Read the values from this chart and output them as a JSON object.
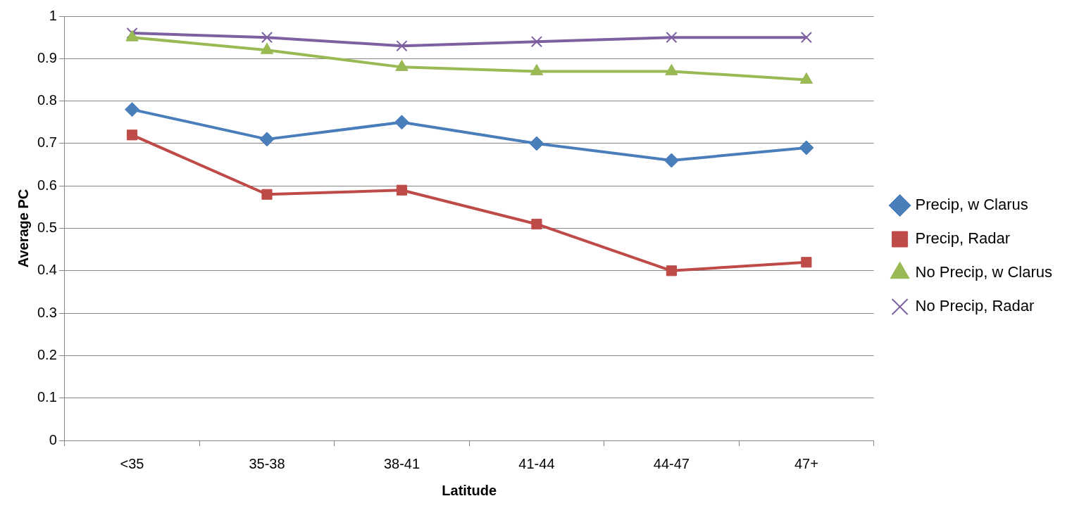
{
  "chart_data": {
    "type": "line",
    "xlabel": "Latitude",
    "ylabel": "Average PC",
    "categories": [
      "<35",
      "35-38",
      "38-41",
      "41-44",
      "44-47",
      "47+"
    ],
    "series": [
      {
        "name": "Precip, w Clarus",
        "color": "#4a7ebb",
        "marker": "diamond",
        "values": [
          0.78,
          0.71,
          0.75,
          0.7,
          0.66,
          0.69
        ]
      },
      {
        "name": "Precip, Radar",
        "color": "#be4b48",
        "marker": "square",
        "values": [
          0.72,
          0.58,
          0.59,
          0.51,
          0.4,
          0.42
        ]
      },
      {
        "name": "No Precip, w Clarus",
        "color": "#98b954",
        "marker": "triangle",
        "values": [
          0.95,
          0.92,
          0.88,
          0.87,
          0.87,
          0.85
        ]
      },
      {
        "name": "No Precip, Radar",
        "color": "#7d60a0",
        "marker": "cross",
        "values": [
          0.96,
          0.95,
          0.93,
          0.94,
          0.95,
          0.95
        ]
      }
    ],
    "ylim": [
      0,
      1
    ],
    "yticks": [
      0,
      0.1,
      0.2,
      0.3,
      0.4,
      0.5,
      0.6,
      0.7,
      0.8,
      0.9,
      1
    ],
    "grid": "y",
    "legend": "right",
    "line_style": "solid"
  }
}
